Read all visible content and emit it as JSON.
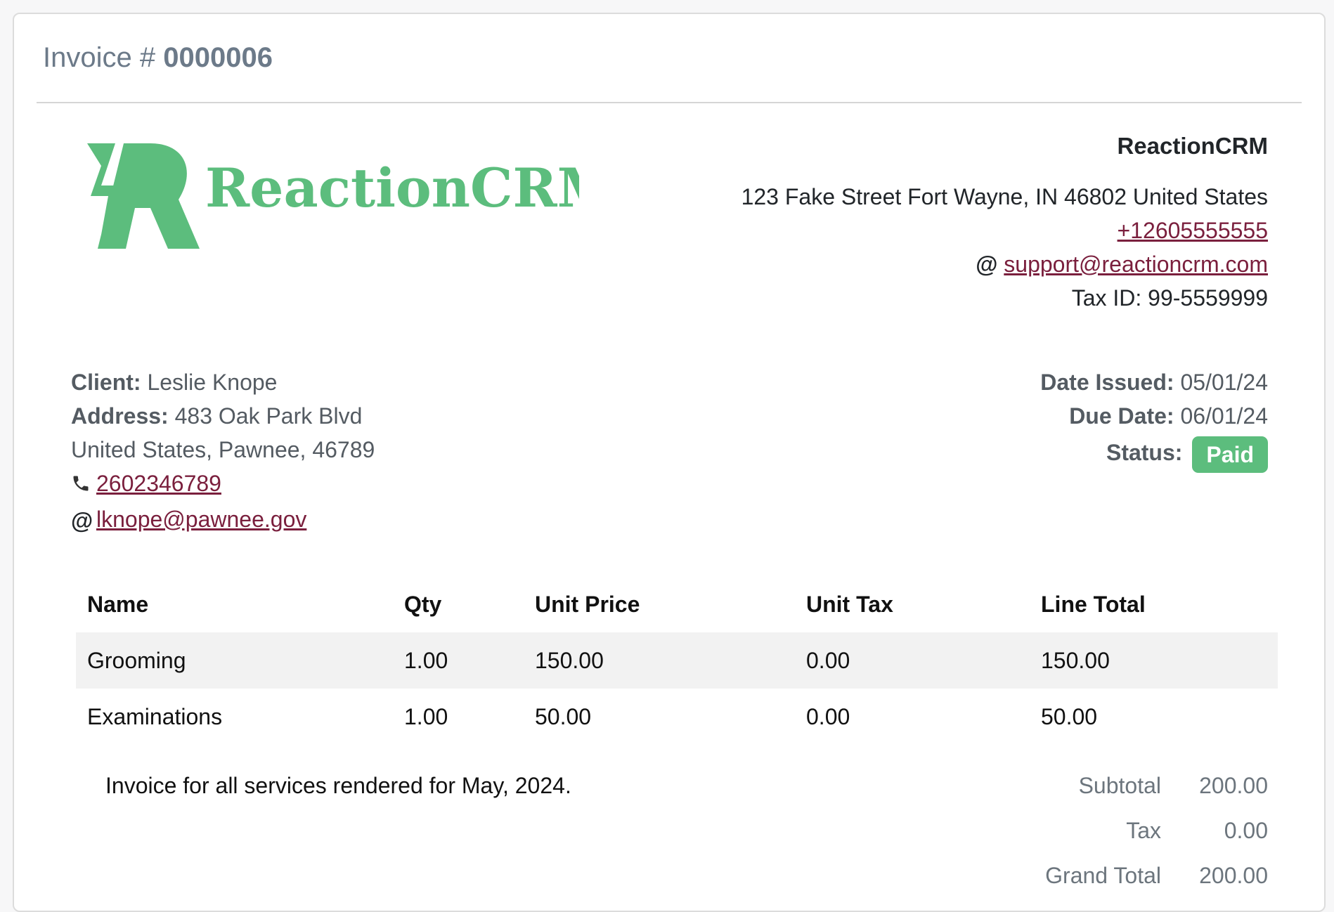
{
  "invoice": {
    "title_prefix": "Invoice # ",
    "number": "0000006"
  },
  "logo": {
    "text": "ReactionCRM",
    "color": "#5cbd7d"
  },
  "company": {
    "name": "ReactionCRM",
    "address": "123 Fake Street Fort Wayne, IN 46802 United States",
    "phone": "+12605555555",
    "email": "support@reactioncrm.com",
    "tax_id": "Tax ID: 99-5559999"
  },
  "client": {
    "client_label": "Client:",
    "client_name": "Leslie Knope",
    "address_label": "Address:",
    "address_line1": "483 Oak Park Blvd",
    "address_line2": "United States, Pawnee, 46789",
    "phone": "2602346789",
    "email": "lknope@pawnee.gov"
  },
  "dates": {
    "issued_label": "Date Issued:",
    "issued": "05/01/24",
    "due_label": "Due Date:",
    "due": "06/01/24",
    "status_label": "Status:",
    "status": "Paid",
    "status_color": "#5cbd7d"
  },
  "table": {
    "headers": [
      "Name",
      "Qty",
      "Unit Price",
      "Unit Tax",
      "Line Total"
    ],
    "rows": [
      [
        "Grooming",
        "1.00",
        "150.00",
        "0.00",
        "150.00"
      ],
      [
        "Examinations",
        "1.00",
        "50.00",
        "0.00",
        "50.00"
      ]
    ]
  },
  "notes": "Invoice for all services rendered for May, 2024.",
  "totals": {
    "subtotal_label": "Subtotal",
    "subtotal": "200.00",
    "tax_label": "Tax",
    "tax": "0.00",
    "grand_label": "Grand Total",
    "grand": "200.00"
  },
  "icons": {
    "phone": "phone-icon",
    "email": "at-sign-icon"
  },
  "link_color": "#7a1f3d"
}
